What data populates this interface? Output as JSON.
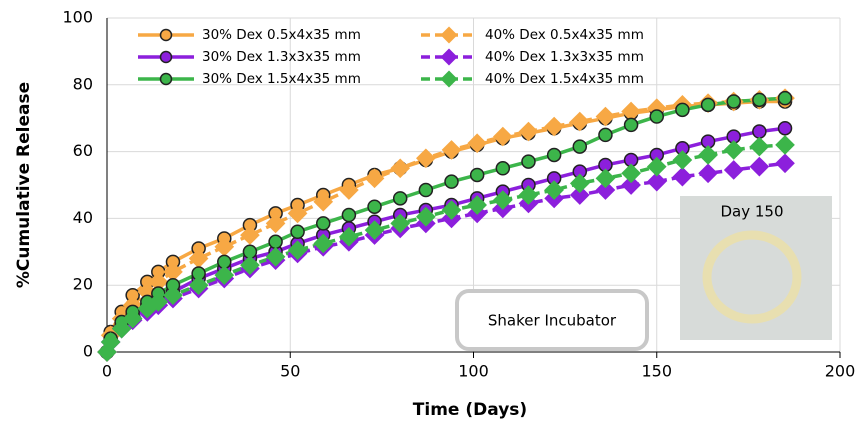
{
  "chart_data": {
    "type": "line",
    "xlabel": "Time (Days)",
    "ylabel": "%Cumulative Release",
    "x": [
      0,
      1,
      4,
      7,
      11,
      14,
      18,
      25,
      32,
      39,
      46,
      52,
      59,
      66,
      73,
      80,
      87,
      94,
      101,
      108,
      115,
      122,
      129,
      136,
      143,
      150,
      157,
      164,
      171,
      178,
      185
    ],
    "series": [
      {
        "name": "30% Dex 0.5x4x35 mm",
        "color": "#f7a844",
        "marker": "circle",
        "values": [
          0,
          6,
          12,
          17,
          21,
          24,
          27,
          31,
          34,
          38,
          41.5,
          44,
          47,
          50,
          53,
          55,
          57.5,
          60,
          62,
          64,
          65.5,
          67,
          68.5,
          70,
          71.5,
          72.5,
          73.5,
          74,
          74.5,
          75,
          75
        ]
      },
      {
        "name": "40% Dex 0.5x4x35 mm",
        "color": "#f7a844",
        "marker": "diamond",
        "values": [
          0,
          5,
          10,
          14,
          18,
          21,
          24,
          28,
          31.5,
          35,
          38.5,
          41.5,
          45,
          48.5,
          52,
          55,
          58,
          60.5,
          62.5,
          64.5,
          66,
          67.5,
          69,
          70.5,
          72,
          73,
          74,
          74.5,
          75,
          75.5,
          76
        ]
      },
      {
        "name": "30% Dex 1.3x3x35 mm",
        "color": "#8c1fdc",
        "marker": "circle",
        "values": [
          0,
          3.5,
          8,
          11,
          14,
          16,
          18,
          22,
          25,
          28,
          30,
          32.5,
          35,
          37,
          39,
          41,
          42.5,
          44,
          46,
          48,
          50,
          52,
          54,
          56,
          57.5,
          59,
          61,
          63,
          64.5,
          66,
          67
        ]
      },
      {
        "name": "40% Dex 1.3x3x35 mm",
        "color": "#8c1fdc",
        "marker": "diamond",
        "values": [
          0,
          3,
          7,
          9.5,
          12,
          14,
          16,
          19,
          22,
          25,
          27.5,
          29.5,
          31.5,
          33,
          35,
          37,
          38.5,
          40,
          41.5,
          43,
          44.5,
          46,
          47,
          48.5,
          50,
          51,
          52.5,
          53.5,
          54.5,
          55.5,
          56.5
        ]
      },
      {
        "name": "30% Dex 1.5x4x35 mm",
        "color": "#3cb54a",
        "marker": "circle",
        "values": [
          0,
          4,
          9,
          12,
          15,
          17.5,
          20,
          23.5,
          27,
          30,
          33,
          36,
          38.5,
          41,
          43.5,
          46,
          48.5,
          51,
          53,
          55,
          57,
          59,
          61.5,
          65,
          68,
          70.5,
          72.5,
          74,
          75,
          75.5,
          76
        ]
      },
      {
        "name": "40% Dex 1.5x4x35 mm",
        "color": "#3cb54a",
        "marker": "diamond",
        "values": [
          0,
          3,
          7,
          10,
          13,
          15,
          17,
          20,
          23,
          26,
          28.5,
          30.5,
          32.5,
          34.5,
          36.5,
          38.5,
          40.5,
          42.5,
          44,
          45.5,
          47,
          48.5,
          50.5,
          52,
          53.5,
          55.5,
          57.5,
          59,
          60.5,
          61.5,
          62
        ]
      }
    ],
    "xlim": [
      0,
      200
    ],
    "xticks": [
      0,
      50,
      100,
      150,
      200
    ],
    "ylim": [
      0,
      100
    ],
    "yticks": [
      0,
      20,
      40,
      60,
      80,
      100
    ],
    "grid": true,
    "annotations": [
      "Shaker Incubator",
      "Day 150"
    ]
  }
}
